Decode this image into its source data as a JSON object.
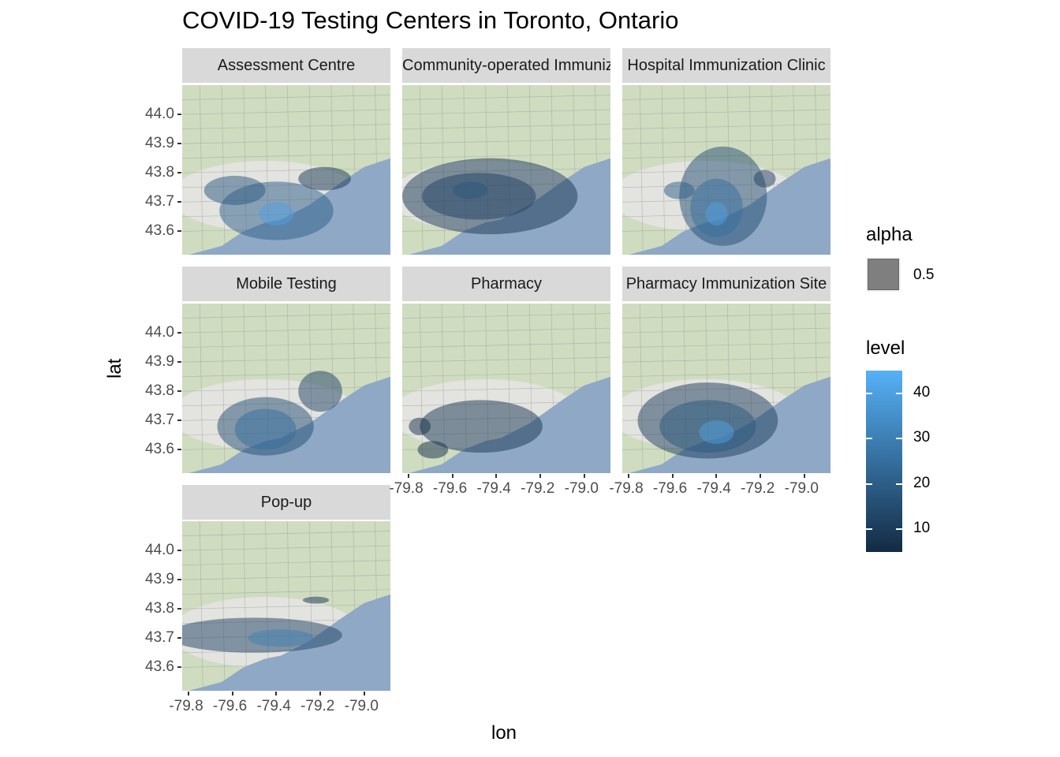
{
  "chart_data": {
    "type": "heatmap",
    "title": "COVID-19 Testing Centers in Toronto, Ontario",
    "xlabel": "lon",
    "ylabel": "lat",
    "xlim": [
      -79.83,
      -78.88
    ],
    "ylim": [
      43.52,
      44.1
    ],
    "x_ticks": [
      "-79.8",
      "-79.6",
      "-79.4",
      "-79.2",
      "-79.0"
    ],
    "y_ticks": [
      "44.0",
      "43.9",
      "43.8",
      "43.7",
      "43.6"
    ],
    "x_tick_values": [
      -79.8,
      -79.6,
      -79.4,
      -79.2,
      -79.0
    ],
    "y_tick_values": [
      44.0,
      43.9,
      43.8,
      43.7,
      43.6
    ],
    "facets": [
      {
        "label": "Assessment Centre",
        "blobs": [
          {
            "lon": -79.4,
            "lat": 43.67,
            "rx": 0.26,
            "ry": 0.1,
            "level": 20
          },
          {
            "lon": -79.59,
            "lat": 43.74,
            "rx": 0.14,
            "ry": 0.05,
            "level": 18
          },
          {
            "lon": -79.18,
            "lat": 43.78,
            "rx": 0.12,
            "ry": 0.04,
            "level": 8
          },
          {
            "lon": -79.4,
            "lat": 43.66,
            "rx": 0.08,
            "ry": 0.04,
            "level": 40
          }
        ]
      },
      {
        "label": "Community-operated Immunization Clinic",
        "blobs": [
          {
            "lon": -79.43,
            "lat": 43.72,
            "rx": 0.4,
            "ry": 0.13,
            "level": 8
          },
          {
            "lon": -79.48,
            "lat": 43.72,
            "rx": 0.26,
            "ry": 0.08,
            "level": 12
          },
          {
            "lon": -79.52,
            "lat": 43.74,
            "rx": 0.08,
            "ry": 0.03,
            "level": 18
          }
        ]
      },
      {
        "label": "Hospital Immunization Clinic",
        "blobs": [
          {
            "lon": -79.37,
            "lat": 43.72,
            "rx": 0.2,
            "ry": 0.17,
            "level": 15
          },
          {
            "lon": -79.4,
            "lat": 43.68,
            "rx": 0.12,
            "ry": 0.1,
            "level": 25
          },
          {
            "lon": -79.4,
            "lat": 43.66,
            "rx": 0.05,
            "ry": 0.04,
            "level": 40
          },
          {
            "lon": -79.57,
            "lat": 43.74,
            "rx": 0.07,
            "ry": 0.03,
            "level": 20
          },
          {
            "lon": -79.18,
            "lat": 43.78,
            "rx": 0.05,
            "ry": 0.03,
            "level": 12
          }
        ]
      },
      {
        "label": "Mobile Testing",
        "blobs": [
          {
            "lon": -79.45,
            "lat": 43.68,
            "rx": 0.22,
            "ry": 0.1,
            "level": 15
          },
          {
            "lon": -79.45,
            "lat": 43.67,
            "rx": 0.14,
            "ry": 0.07,
            "level": 25
          },
          {
            "lon": -79.2,
            "lat": 43.8,
            "rx": 0.1,
            "ry": 0.07,
            "level": 12
          }
        ]
      },
      {
        "label": "Pharmacy",
        "blobs": [
          {
            "lon": -79.47,
            "lat": 43.68,
            "rx": 0.28,
            "ry": 0.09,
            "level": 8
          },
          {
            "lon": -79.75,
            "lat": 43.68,
            "rx": 0.05,
            "ry": 0.03,
            "level": 6
          },
          {
            "lon": -79.69,
            "lat": 43.6,
            "rx": 0.07,
            "ry": 0.03,
            "level": 6
          }
        ]
      },
      {
        "label": "Pharmacy Immunization Site",
        "blobs": [
          {
            "lon": -79.44,
            "lat": 43.7,
            "rx": 0.32,
            "ry": 0.13,
            "level": 10
          },
          {
            "lon": -79.44,
            "lat": 43.68,
            "rx": 0.22,
            "ry": 0.09,
            "level": 18
          },
          {
            "lon": -79.4,
            "lat": 43.66,
            "rx": 0.08,
            "ry": 0.04,
            "level": 40
          }
        ]
      },
      {
        "label": "Pop-up",
        "blobs": [
          {
            "lon": -79.5,
            "lat": 43.71,
            "rx": 0.4,
            "ry": 0.06,
            "level": 12
          },
          {
            "lon": -79.38,
            "lat": 43.7,
            "rx": 0.15,
            "ry": 0.03,
            "level": 30
          },
          {
            "lon": -79.22,
            "lat": 43.83,
            "rx": 0.06,
            "ry": 0.012,
            "level": 8
          }
        ]
      }
    ],
    "legends": {
      "alpha": {
        "title": "alpha",
        "label": "0.5",
        "color": "#7f7f7f"
      },
      "level": {
        "title": "level",
        "ticks": [
          "40",
          "30",
          "20",
          "10"
        ],
        "tick_values": [
          40,
          30,
          20,
          10
        ],
        "range": [
          5,
          45
        ],
        "low_color": "#132b43",
        "high_color": "#56b1f7"
      }
    },
    "colors": {
      "land": "#cfdcc0",
      "water": "#8ea8c6",
      "road": "#9a9a9a",
      "strip": "#d9d9d9"
    }
  }
}
